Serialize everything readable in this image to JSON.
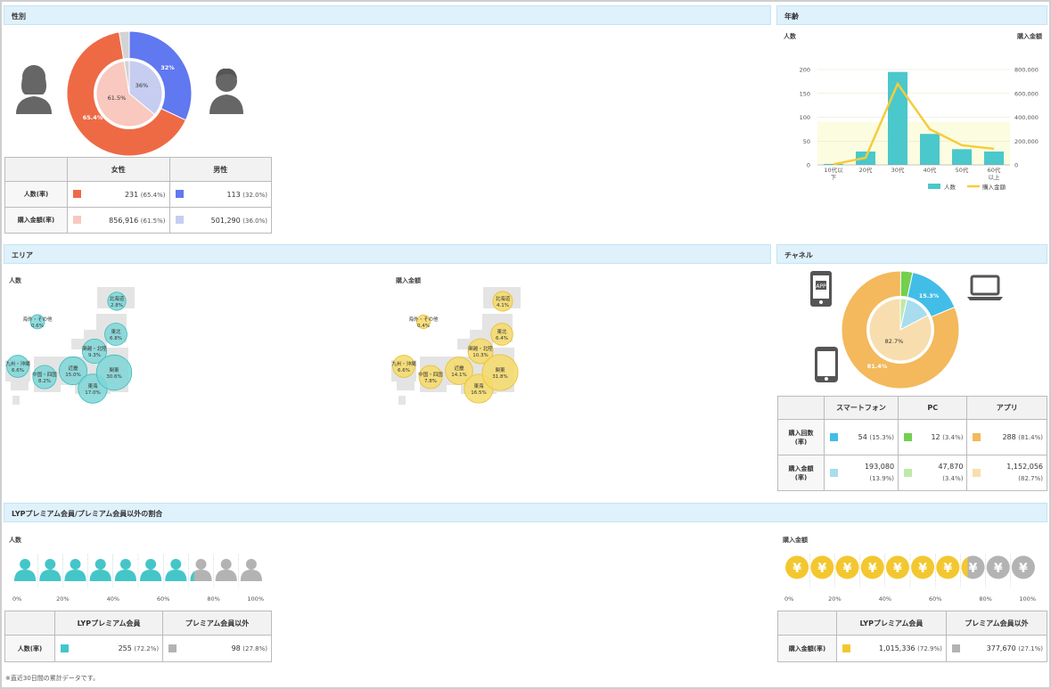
{
  "gender": {
    "section_title": "性別",
    "pie_outer": {
      "female_pct": 65.4,
      "male_pct": 32.0,
      "other_pct": 2.6,
      "female_label": "65.4%",
      "male_label": "32%"
    },
    "pie_inner": {
      "female_pct": 61.5,
      "male_pct": 36.0,
      "other_pct": 2.5,
      "female_label": "61.5%",
      "male_label": "36%"
    },
    "table": {
      "headers": [
        "女性",
        "男性"
      ],
      "rows": [
        {
          "label": "人数(率)",
          "cells": [
            {
              "value": "231",
              "pct": "(65.4%)"
            },
            {
              "value": "113",
              "pct": "(32.0%)"
            }
          ]
        },
        {
          "label": "購入金額(率)",
          "cells": [
            {
              "value": "856,916",
              "pct": "(61.5%)"
            },
            {
              "value": "501,290",
              "pct": "(36.0%)"
            }
          ]
        }
      ]
    },
    "colors": {
      "female": "#ee6a45",
      "male": "#6078f0",
      "female_light": "#f9c8be",
      "male_light": "#c6cdf0",
      "other": "#d3d3d3"
    }
  },
  "age": {
    "section_title": "年齢",
    "left_axis_title": "人数",
    "right_axis_title": "購入金額",
    "legend": [
      "人数",
      "購入金額"
    ],
    "chart_data": {
      "type": "bar",
      "categories": [
        "10代以下",
        "20代",
        "30代",
        "40代",
        "50代",
        "60代以上"
      ],
      "category_lines": [
        [
          "10代以",
          "下"
        ],
        [
          "20代"
        ],
        [
          "30代"
        ],
        [
          "40代"
        ],
        [
          "50代"
        ],
        [
          "60代",
          "以上"
        ]
      ],
      "series": [
        {
          "name": "人数",
          "type": "bar",
          "axis": "left",
          "values": [
            2,
            28,
            195,
            65,
            33,
            28
          ]
        },
        {
          "name": "購入金額",
          "type": "line",
          "axis": "right",
          "values": [
            5000,
            60000,
            680000,
            300000,
            165000,
            135000
          ]
        }
      ],
      "left_ylim": [
        0,
        200
      ],
      "left_ticks": [
        "0",
        "50",
        "100",
        "150",
        "200"
      ],
      "right_ylim": [
        0,
        800000
      ],
      "right_ticks": [
        "0",
        "200,000",
        "400,000",
        "600,000",
        "800,000"
      ],
      "colors": {
        "bar": "#4ac8cc",
        "line": "#f5cc3c"
      }
    }
  },
  "area": {
    "section_title": "エリア",
    "left_title": "人数",
    "right_title": "購入金額",
    "people": [
      {
        "name": "北海道",
        "value": "2.8%"
      },
      {
        "name": "東北",
        "value": "6.8%"
      },
      {
        "name": "海外・その他",
        "value": "0.6%"
      },
      {
        "name": "関越・北陸",
        "value": "9.3%"
      },
      {
        "name": "九州・沖縄",
        "value": "6.6%"
      },
      {
        "name": "中国・四国",
        "value": "8.2%"
      },
      {
        "name": "近畿",
        "value": "15.0%"
      },
      {
        "name": "東海",
        "value": "17.0%"
      },
      {
        "name": "関東",
        "value": "30.6%"
      }
    ],
    "amount": [
      {
        "name": "北海道",
        "value": "4.1%"
      },
      {
        "name": "東北",
        "value": "6.4%"
      },
      {
        "name": "海外・その他",
        "value": "0.4%"
      },
      {
        "name": "関越・北陸",
        "value": "10.3%"
      },
      {
        "name": "九州・沖縄",
        "value": "6.6%"
      },
      {
        "name": "中国・四国",
        "value": "7.8%"
      },
      {
        "name": "近畿",
        "value": "14.1%"
      },
      {
        "name": "東海",
        "value": "16.5%"
      },
      {
        "name": "関東",
        "value": "31.8%"
      }
    ],
    "colors": {
      "people": "#7fd6d7",
      "people_stroke": "#3bbcc0",
      "amount": "#f6da6a",
      "amount_stroke": "#e8bf2e",
      "map": "#e4e4e4"
    }
  },
  "channel": {
    "section_title": "チャネル",
    "pie_outer": {
      "app_pct": 81.4,
      "pc_pct": 3.4,
      "smartphone_pct": 15.3,
      "app_label": "81.4%",
      "smartphone_label": "15.3%"
    },
    "pie_inner": {
      "app_pct": 82.7,
      "pc_pct": 3.4,
      "smartphone_pct": 13.9,
      "app_label": "82.7%"
    },
    "table": {
      "headers": [
        "スマートフォン",
        "PC",
        "アプリ"
      ],
      "rows": [
        {
          "label_lines": [
            "購入回数",
            "(率)"
          ],
          "cells": [
            {
              "value": "54",
              "pct": "(15.3%)"
            },
            {
              "value": "12",
              "pct": "(3.4%)"
            },
            {
              "value": "288",
              "pct": "(81.4%)"
            }
          ]
        },
        {
          "label_lines": [
            "購入金額",
            "(率)"
          ],
          "cells": [
            {
              "value": "193,080",
              "pct": "(13.9%)"
            },
            {
              "value": "47,870",
              "pct": "(3.4%)"
            },
            {
              "value": "1,152,056",
              "pct": "(82.7%)"
            }
          ]
        }
      ]
    },
    "icons": [
      "app-icon",
      "laptop-icon",
      "smartphone-icon"
    ],
    "colors": {
      "smartphone": "#41bde8",
      "pc": "#72d04e",
      "app": "#f3b95c",
      "smartphone_light": "#a8dcee",
      "pc_light": "#bfe9a9",
      "app_light": "#f8deae"
    }
  },
  "premium": {
    "section_title": "LYPプレミアム会員/プレミアム会員以外の割合",
    "people_title": "人数",
    "amount_title": "購入金額",
    "axis_ticks": [
      "0%",
      "20%",
      "40%",
      "60%",
      "80%",
      "100%"
    ],
    "people_premium_fraction": 0.722,
    "amount_premium_fraction": 0.729,
    "people_table": {
      "headers": [
        "LYPプレミアム会員",
        "プレミアム会員以外"
      ],
      "row_label": "人数(率)",
      "cells": [
        {
          "value": "255",
          "pct": "(72.2%)"
        },
        {
          "value": "98",
          "pct": "(27.8%)"
        }
      ]
    },
    "amount_table": {
      "headers": [
        "LYPプレミアム会員",
        "プレミアム会員以外"
      ],
      "row_label": "購入金額(率)",
      "cells": [
        {
          "value": "1,015,336",
          "pct": "(72.9%)"
        },
        {
          "value": "377,670",
          "pct": "(27.1%)"
        }
      ]
    },
    "colors": {
      "premium_people": "#44c6c9",
      "premium_amount": "#f3c72f",
      "other": "#b3b3b3"
    }
  },
  "footer_note": "※直近30日間の累計データです。"
}
